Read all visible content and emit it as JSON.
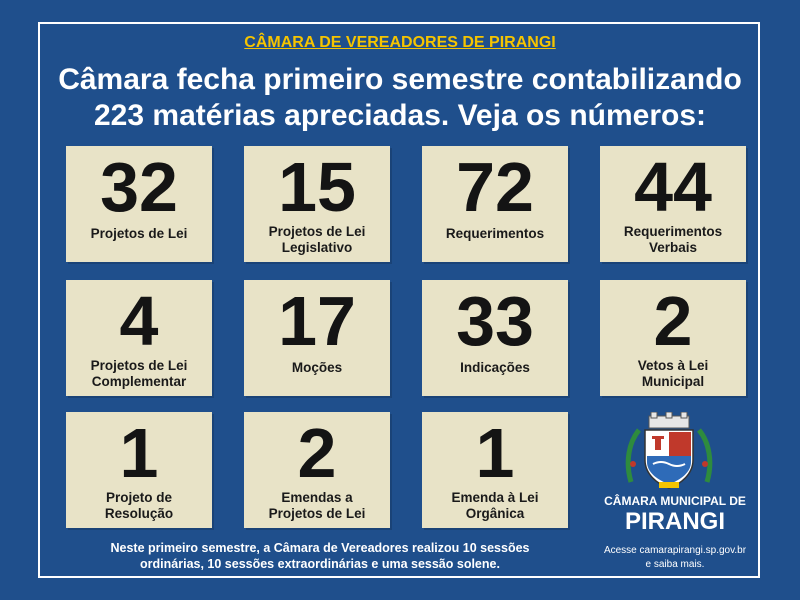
{
  "header": {
    "org_title": "CÂMARA DE VEREADORES DE PIRANGI",
    "headline_line1": "Câmara fecha primeiro semestre contabilizando",
    "headline_line2": "223 matérias apreciadas. Veja os números:"
  },
  "stats": [
    {
      "value": "32",
      "label1": "Projetos de Lei",
      "label2": ""
    },
    {
      "value": "15",
      "label1": "Projetos de Lei",
      "label2": "Legislativo"
    },
    {
      "value": "72",
      "label1": "Requerimentos",
      "label2": ""
    },
    {
      "value": "44",
      "label1": "Requerimentos",
      "label2": "Verbais"
    },
    {
      "value": "4",
      "label1": "Projetos de Lei",
      "label2": "Complementar"
    },
    {
      "value": "17",
      "label1": "Moções",
      "label2": ""
    },
    {
      "value": "33",
      "label1": "Indicações",
      "label2": ""
    },
    {
      "value": "2",
      "label1": "Vetos à Lei",
      "label2": "Municipal"
    },
    {
      "value": "1",
      "label1": "Projeto de",
      "label2": "Resolução"
    },
    {
      "value": "2",
      "label1": "Emendas a",
      "label2": "Projetos de Lei"
    },
    {
      "value": "1",
      "label1": "Emenda à Lei",
      "label2": "Orgânica"
    }
  ],
  "footer": {
    "summary_line1": "Neste primeiro semestre, a Câmara de Vereadores realizou 10 sessões",
    "summary_line2": "ordinárias, 10 sessões extraordinárias e uma sessão solene."
  },
  "institution": {
    "seal_icon": "municipal-coat-of-arms-icon",
    "name_line1": "CÂMARA MUNICIPAL DE",
    "name_line2": "PIRANGI",
    "site_line1": "Acesse camarapirangi.sp.gov.br",
    "site_line2": "e saiba mais."
  },
  "colors": {
    "background": "#1f4f8c",
    "card": "#e8e3c7",
    "accent": "#f5c400"
  }
}
